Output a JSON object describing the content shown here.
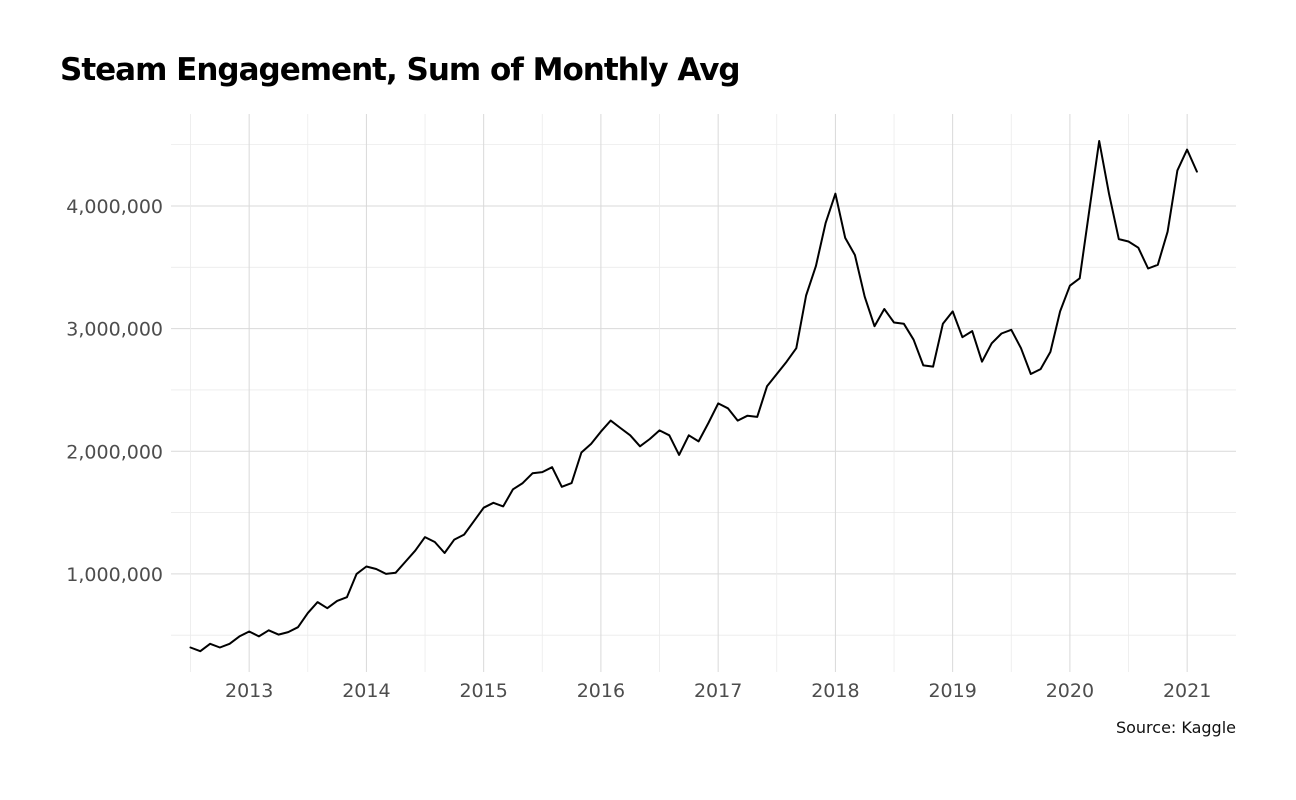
{
  "chart_data": {
    "type": "line",
    "title": "Steam Engagement, Sum of Monthly Avg",
    "caption": "Source: Kaggle",
    "xlabel": "",
    "ylabel": "",
    "x_ticks": [
      "2013",
      "2014",
      "2015",
      "2016",
      "2017",
      "2018",
      "2019",
      "2020",
      "2021"
    ],
    "y_ticks": [
      "1,000,000",
      "2,000,000",
      "3,000,000",
      "4,000,000"
    ],
    "y_tick_values": [
      1000000,
      2000000,
      3000000,
      4000000
    ],
    "xlim": [
      "2012-05",
      "2021-06"
    ],
    "ylim": [
      200000,
      4750000
    ],
    "grid": true,
    "legend": "none",
    "line_color": "#000000",
    "series": [
      {
        "x": [
          "2012-07",
          "2012-08",
          "2012-09",
          "2012-10",
          "2012-11",
          "2012-12",
          "2013-01",
          "2013-02",
          "2013-03",
          "2013-04",
          "2013-05",
          "2013-06",
          "2013-07",
          "2013-08",
          "2013-09",
          "2013-10",
          "2013-11",
          "2013-12",
          "2014-01",
          "2014-02",
          "2014-03",
          "2014-04",
          "2014-05",
          "2014-06",
          "2014-07",
          "2014-08",
          "2014-09",
          "2014-10",
          "2014-11",
          "2014-12",
          "2015-01",
          "2015-02",
          "2015-03",
          "2015-04",
          "2015-05",
          "2015-06",
          "2015-07",
          "2015-08",
          "2015-09",
          "2015-10",
          "2015-11",
          "2015-12",
          "2016-01",
          "2016-02",
          "2016-03",
          "2016-04",
          "2016-05",
          "2016-06",
          "2016-07",
          "2016-08",
          "2016-09",
          "2016-10",
          "2016-11",
          "2016-12",
          "2017-01",
          "2017-02",
          "2017-03",
          "2017-04",
          "2017-05",
          "2017-06",
          "2017-07",
          "2017-08",
          "2017-09",
          "2017-10",
          "2017-11",
          "2017-12",
          "2018-01",
          "2018-02",
          "2018-03",
          "2018-04",
          "2018-05",
          "2018-06",
          "2018-07",
          "2018-08",
          "2018-09",
          "2018-10",
          "2018-11",
          "2018-12",
          "2019-01",
          "2019-02",
          "2019-03",
          "2019-04",
          "2019-05",
          "2019-06",
          "2019-07",
          "2019-08",
          "2019-09",
          "2019-10",
          "2019-11",
          "2019-12",
          "2020-01",
          "2020-02",
          "2020-03",
          "2020-04",
          "2020-05",
          "2020-06",
          "2020-07",
          "2020-08",
          "2020-09",
          "2020-10",
          "2020-11",
          "2020-12",
          "2021-01",
          "2021-02"
        ],
        "values": [
          400000,
          370000,
          430000,
          400000,
          430000,
          490000,
          530000,
          490000,
          540000,
          505000,
          525000,
          565000,
          680000,
          770000,
          720000,
          780000,
          810000,
          1000000,
          1060000,
          1040000,
          1000000,
          1010000,
          1100000,
          1190000,
          1300000,
          1260000,
          1170000,
          1280000,
          1320000,
          1430000,
          1540000,
          1580000,
          1550000,
          1690000,
          1740000,
          1820000,
          1830000,
          1870000,
          1710000,
          1740000,
          1990000,
          2060000,
          2160000,
          2250000,
          2190000,
          2130000,
          2040000,
          2100000,
          2170000,
          2130000,
          1970000,
          2130000,
          2080000,
          2230000,
          2390000,
          2350000,
          2250000,
          2290000,
          2280000,
          2530000,
          2630000,
          2730000,
          2840000,
          3270000,
          3510000,
          3860000,
          4100000,
          3740000,
          3600000,
          3260000,
          3020000,
          3160000,
          3050000,
          3040000,
          2910000,
          2700000,
          2690000,
          3040000,
          3140000,
          2930000,
          2980000,
          2730000,
          2880000,
          2960000,
          2990000,
          2840000,
          2630000,
          2670000,
          2810000,
          3140000,
          3350000,
          3410000,
          3970000,
          4530000,
          4100000,
          3730000,
          3710000,
          3660000,
          3490000,
          3520000,
          3790000,
          4290000,
          4460000,
          4280000
        ]
      }
    ]
  }
}
